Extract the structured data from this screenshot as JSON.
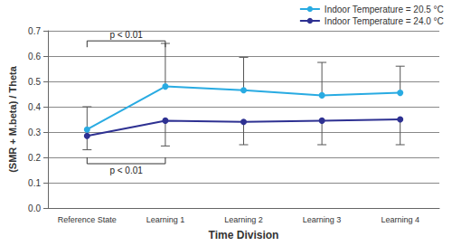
{
  "chart_data": {
    "type": "line",
    "x_label": "Time Division",
    "y_label": "(SMR + M.beta) / Theta",
    "categories": [
      "Reference State",
      "Learning 1",
      "Learning 2",
      "Learning 3",
      "Learning 4"
    ],
    "series": [
      {
        "name": "Indoor Temperature = 20.5 °C",
        "color": "#29abe2",
        "marker": "circle",
        "values": [
          0.31,
          0.48,
          0.465,
          0.445,
          0.455
        ],
        "error_plus": [
          0.09,
          0.17,
          0.13,
          0.13,
          0.105
        ]
      },
      {
        "name": "Indoor Temperature = 24.0 °C",
        "color": "#2e3192",
        "marker": "circle",
        "values": [
          0.285,
          0.345,
          0.34,
          0.345,
          0.35
        ],
        "error_minus": [
          0.055,
          0.1,
          0.09,
          0.095,
          0.1
        ]
      }
    ],
    "ylim": [
      0,
      0.7
    ],
    "yticks": [
      {
        "value": 0,
        "label": "0.0"
      },
      0.1,
      0.2,
      0.3,
      0.4,
      0.5,
      0.6,
      0.7
    ],
    "grid": true,
    "legend": "top-right",
    "annotations": [
      {
        "text": "p < 0.01",
        "from": "Reference State",
        "to": "Learning 1",
        "y": 0.66
      },
      {
        "text": "p < 0.01",
        "from": "Reference State",
        "to": "Learning 1",
        "y": 0.175
      }
    ]
  }
}
